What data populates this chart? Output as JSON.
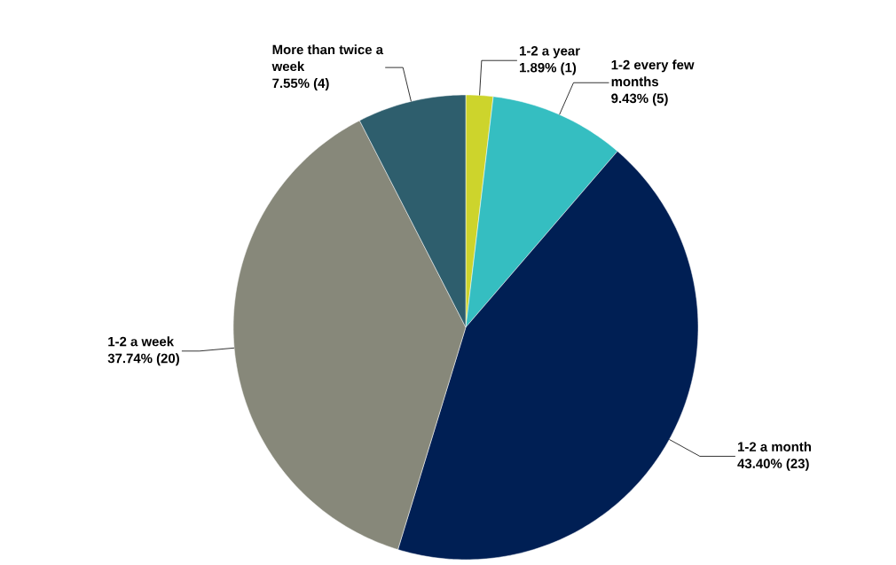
{
  "chart_data": {
    "type": "pie",
    "categories": [
      "1-2 a year",
      "1-2 every few months",
      "1-2 a month",
      "1-2 a week",
      "More than twice a week"
    ],
    "values": [
      1.89,
      9.43,
      43.4,
      37.74,
      7.55
    ],
    "value_labels": [
      "1.89% (1)",
      "9.43% (5)",
      "43.40% (23)",
      "37.74% (20)",
      "7.55% (4)"
    ],
    "colors": [
      "#cdd42c",
      "#35bec1",
      "#001f54",
      "#87887a",
      "#2e5e6d"
    ]
  }
}
